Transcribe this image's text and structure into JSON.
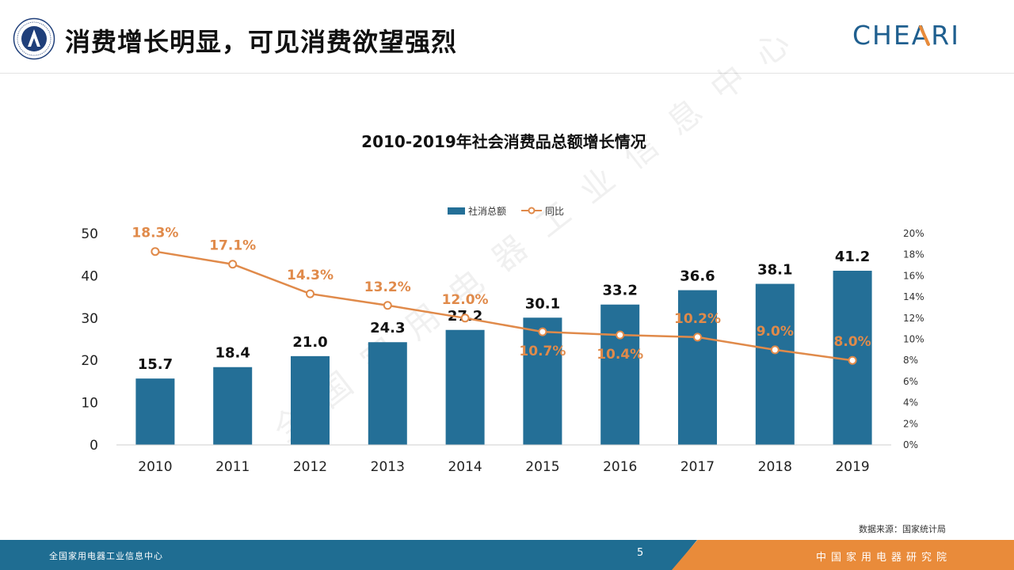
{
  "header": {
    "title": "消费增长明显，可见消费欲望强烈",
    "brand_logo_text": "CHEARI"
  },
  "chart_data": {
    "type": "bar",
    "title": "2010-2019年社会消费品总额增长情况",
    "categories": [
      "2010",
      "2011",
      "2012",
      "2013",
      "2014",
      "2015",
      "2016",
      "2017",
      "2018",
      "2019"
    ],
    "series": [
      {
        "name": "社消总额",
        "kind": "bar",
        "axis": "left",
        "values": [
          15.7,
          18.4,
          21.0,
          24.3,
          27.2,
          30.1,
          33.2,
          36.6,
          38.1,
          41.2
        ],
        "labels": [
          "15.7",
          "18.4",
          "21.0",
          "24.3",
          "27.2",
          "30.1",
          "33.2",
          "36.6",
          "38.1",
          "41.2"
        ],
        "color": "#246f97"
      },
      {
        "name": "同比",
        "kind": "line",
        "axis": "right",
        "values": [
          18.3,
          17.1,
          14.3,
          13.2,
          12.0,
          10.7,
          10.4,
          10.2,
          9.0,
          8.0
        ],
        "labels": [
          "18.3%",
          "17.1%",
          "14.3%",
          "13.2%",
          "12.0%",
          "10.7%",
          "10.4%",
          "10.2%",
          "9.0%",
          "8.0%"
        ],
        "color": "#e08a4a"
      }
    ],
    "y_left": {
      "min": 0,
      "max": 50,
      "ticks": [
        "0",
        "10",
        "20",
        "30",
        "40",
        "50"
      ]
    },
    "y_right": {
      "min": 0,
      "max": 20,
      "ticks": [
        "0%",
        "2%",
        "4%",
        "6%",
        "8%",
        "10%",
        "12%",
        "14%",
        "16%",
        "18%",
        "20%"
      ]
    },
    "legend": "top-center",
    "grid": false
  },
  "watermark": "全国家用电器工业信息中心",
  "source": "数据来源：国家统计局",
  "footer": {
    "left_text": "全国家用电器工业信息中心",
    "page_number": "5",
    "right_text": "中国家用电器研究院"
  },
  "colors": {
    "footer_blue": "#1f6d92",
    "footer_orange": "#e98b3a"
  }
}
